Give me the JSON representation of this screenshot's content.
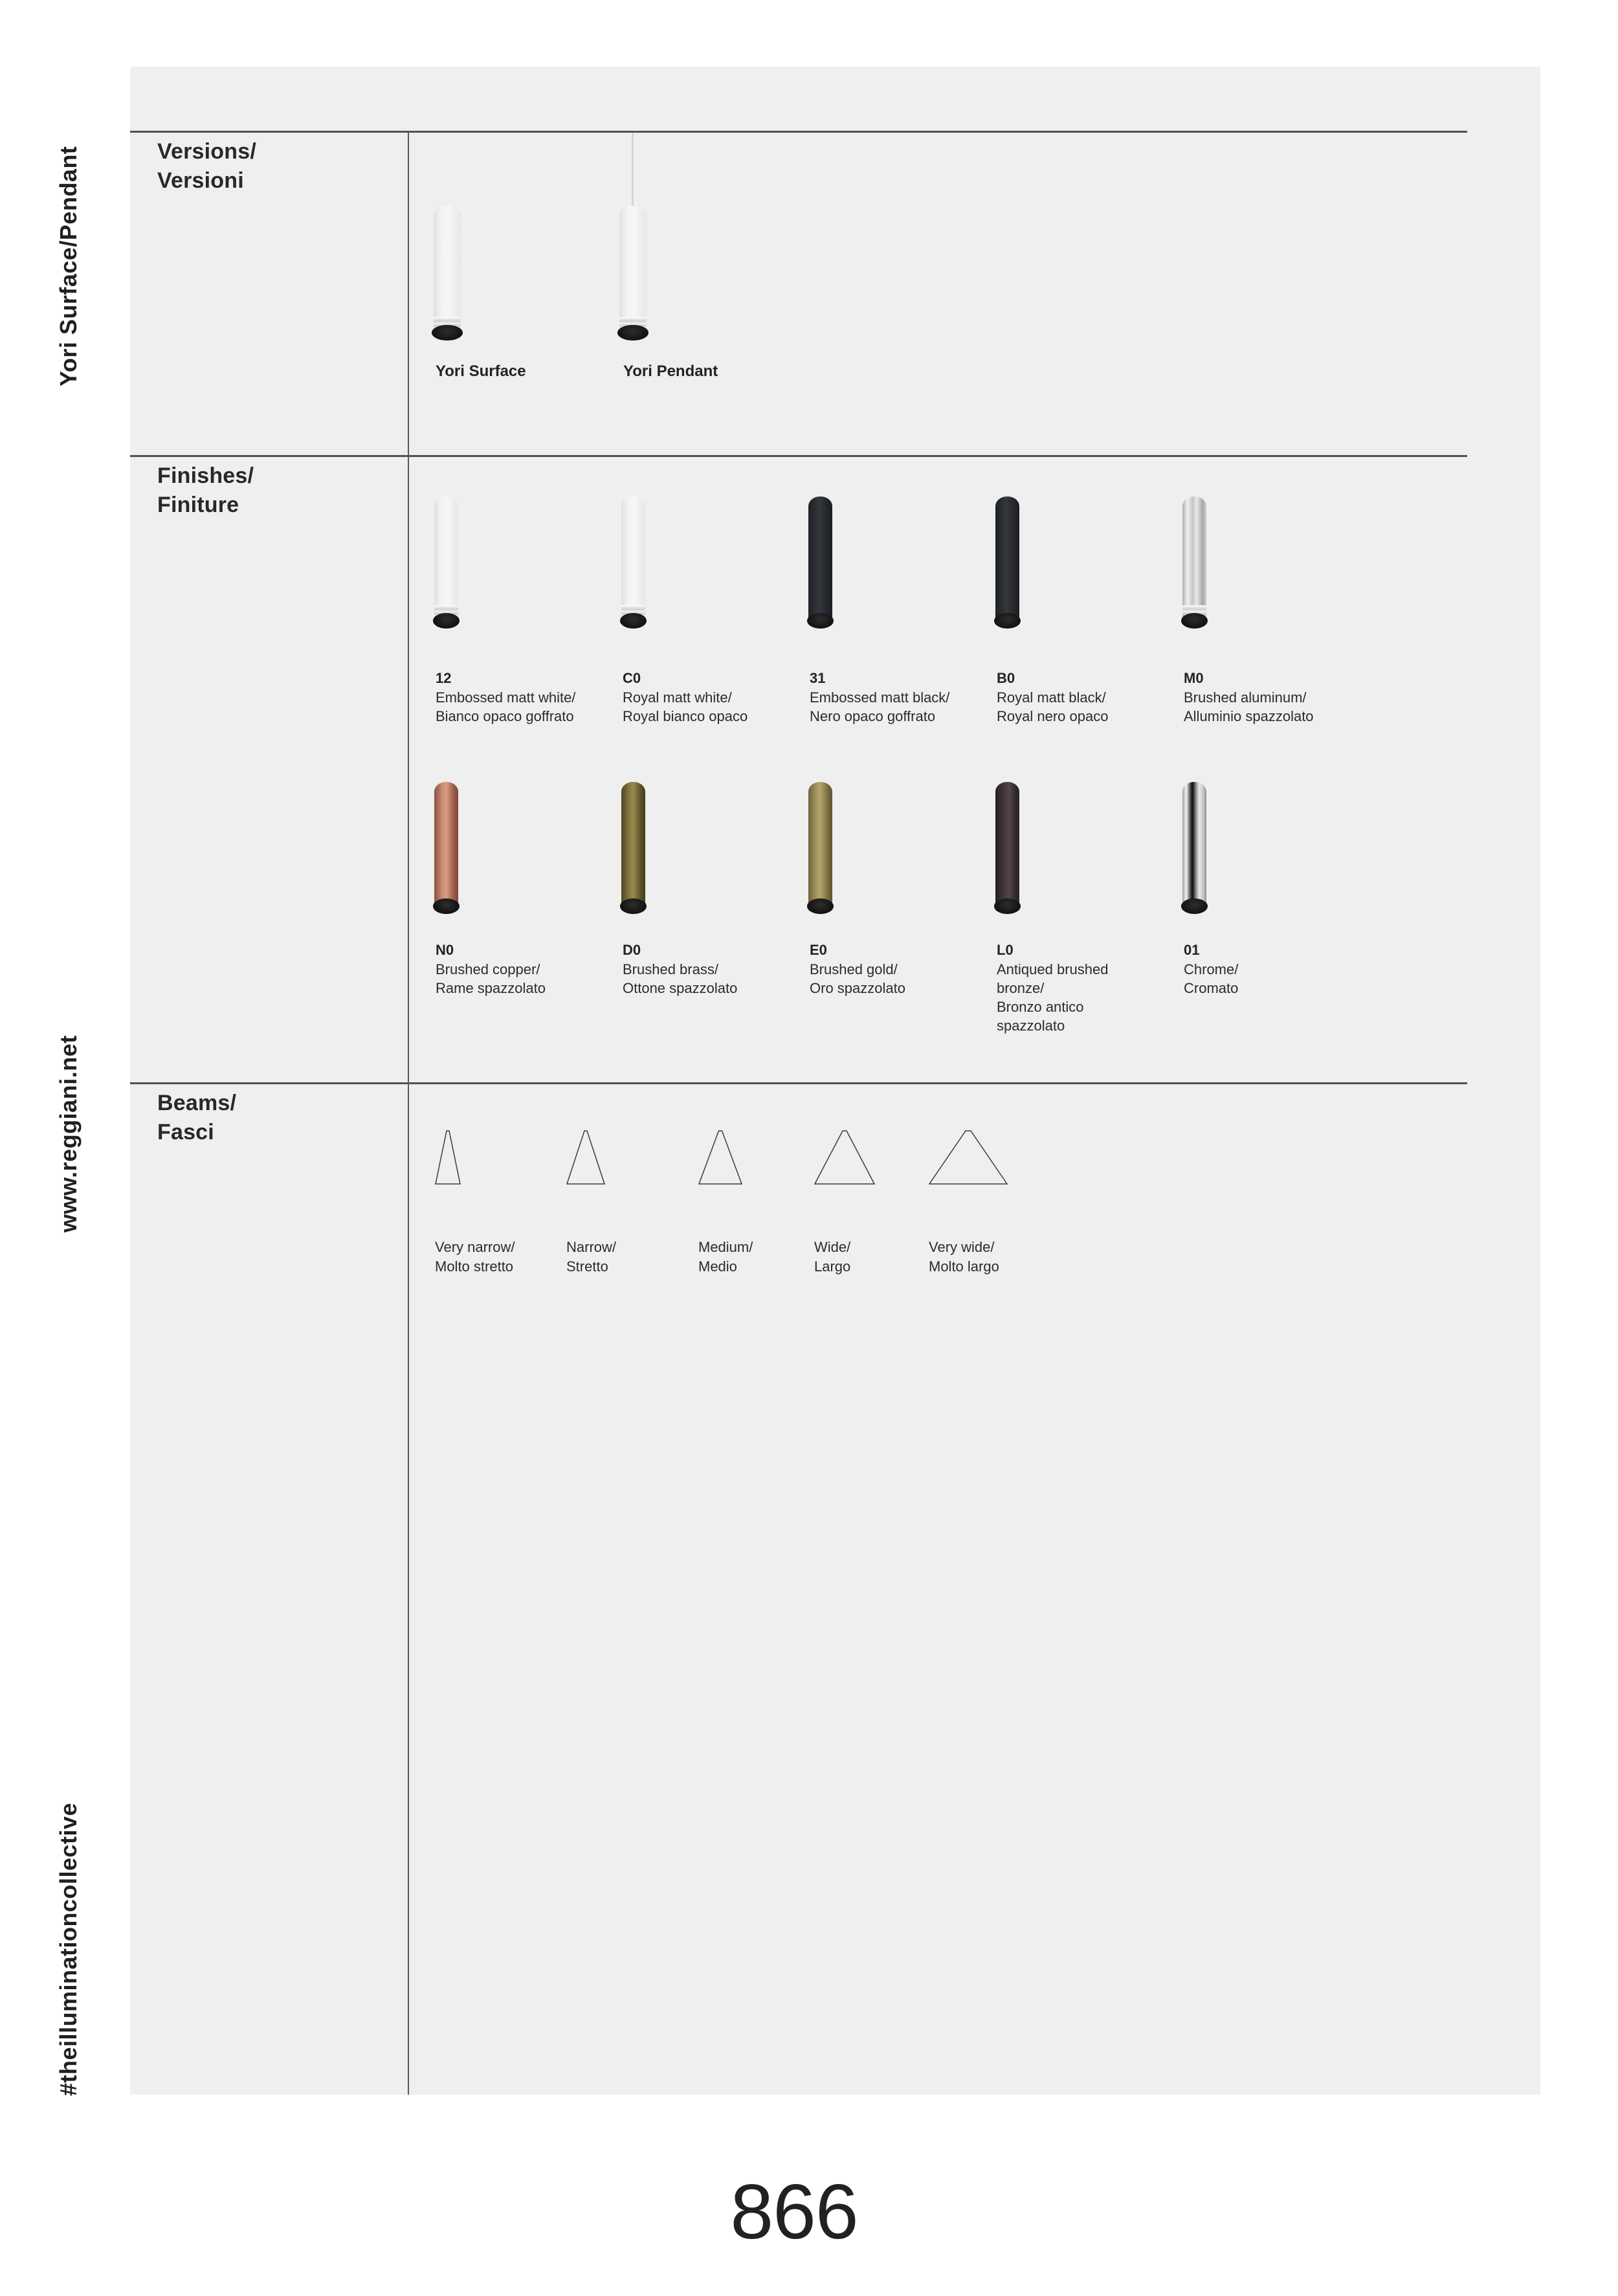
{
  "sidebar": {
    "product": "Yori Surface/Pendant",
    "website": "www.reggiani.net",
    "hashtag": "#theilluminationcollective"
  },
  "page_number": "866",
  "colors": {
    "page_background": "#efefef",
    "rule": "#515154",
    "text": "#262223"
  },
  "sections": {
    "versions": {
      "title_en": "Versions/",
      "title_it": "Versioni",
      "items": [
        {
          "name": "Yori Surface"
        },
        {
          "name": "Yori Pendant"
        }
      ]
    },
    "finishes": {
      "title_en": "Finishes/",
      "title_it": "Finiture",
      "items": [
        {
          "code": "12",
          "lines": [
            "Embossed matt white/",
            "Bianco opaco goffrato"
          ],
          "body_color": "#f3f2f0"
        },
        {
          "code": "C0",
          "lines": [
            "Royal matt white/",
            "Royal bianco opaco"
          ],
          "body_color": "#f3f2f0"
        },
        {
          "code": "31",
          "lines": [
            "Embossed matt black/",
            "Nero opaco goffrato"
          ],
          "body_color": "#26282c"
        },
        {
          "code": "B0",
          "lines": [
            "Royal matt black/",
            "Royal nero opaco"
          ],
          "body_color": "#232428"
        },
        {
          "code": "M0",
          "lines": [
            "Brushed aluminum/",
            "Alluminio spazzolato"
          ],
          "body_color": "#d6d6d6"
        },
        {
          "code": "N0",
          "lines": [
            "Brushed copper/",
            "Rame spazzolato"
          ],
          "body_color": "#c08168"
        },
        {
          "code": "D0",
          "lines": [
            "Brushed brass/",
            "Ottone spazzolato"
          ],
          "body_color": "#84773f"
        },
        {
          "code": "E0",
          "lines": [
            "Brushed gold/",
            "Oro spazzolato"
          ],
          "body_color": "#a79660"
        },
        {
          "code": "L0",
          "lines": [
            "Antiqued brushed",
            "bronze/",
            "Bronzo antico",
            "spazzolato"
          ],
          "body_color": "#3d3337"
        },
        {
          "code": "01",
          "lines": [
            "Chrome/",
            "Cromato"
          ],
          "body_color": "#d9d9d9"
        }
      ]
    },
    "beams": {
      "title_en": "Beams/",
      "title_it": "Fasci",
      "items": [
        {
          "lines": [
            "Very narrow/",
            "Molto stretto"
          ],
          "base_width": 38
        },
        {
          "lines": [
            "Narrow/",
            "Stretto"
          ],
          "base_width": 58
        },
        {
          "lines": [
            "Medium/",
            "Medio"
          ],
          "base_width": 66
        },
        {
          "lines": [
            "Wide/",
            "Largo"
          ],
          "base_width": 92
        },
        {
          "lines": [
            "Very wide/",
            "Molto largo"
          ],
          "base_width": 120
        }
      ]
    }
  }
}
